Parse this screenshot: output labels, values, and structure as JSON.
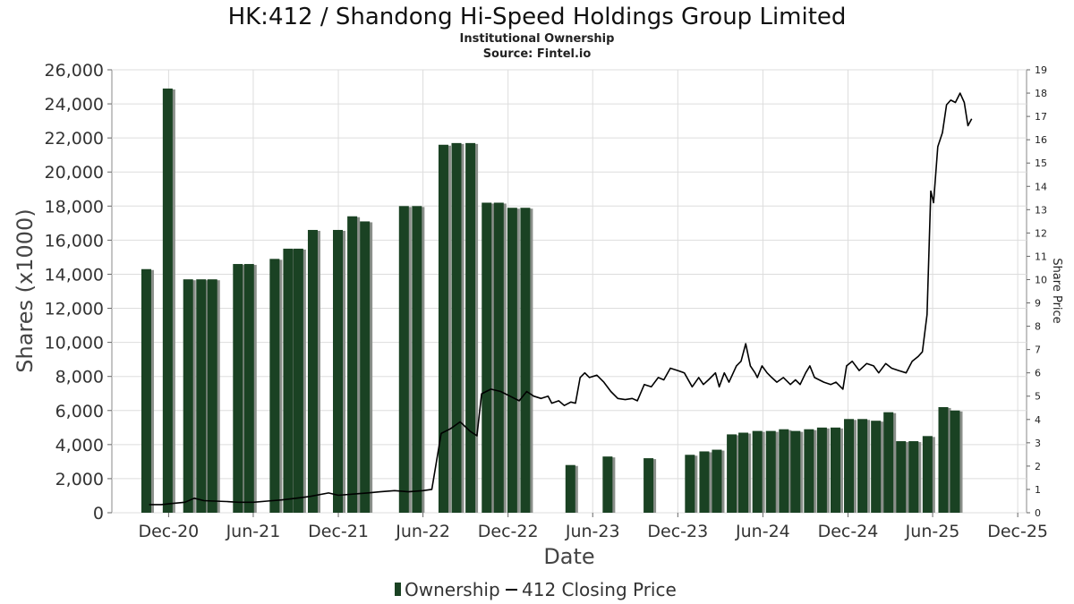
{
  "chart_data": {
    "type": "bar",
    "title": "HK:412 / Shandong Hi-Speed Holdings Group Limited",
    "subtitle_lines": [
      "Institutional Ownership",
      "Source: Fintel.io"
    ],
    "xlabel": "Date",
    "ylabel": "Shares (x1000)",
    "ylabel_right": "Share Price",
    "ylim": [
      0,
      26000
    ],
    "y2lim": [
      0,
      19
    ],
    "xlim": [
      "2020-08-01",
      "2025-12-20"
    ],
    "yticks": [
      0,
      2000,
      4000,
      6000,
      8000,
      10000,
      12000,
      14000,
      16000,
      18000,
      20000,
      22000,
      24000,
      26000
    ],
    "ytick_labels": [
      "0",
      "2,000",
      "4,000",
      "6,000",
      "8,000",
      "10,000",
      "12,000",
      "14,000",
      "16,000",
      "18,000",
      "20,000",
      "22,000",
      "24,000",
      "26,000"
    ],
    "y2ticks": [
      0,
      1,
      2,
      3,
      4,
      5,
      6,
      7,
      8,
      9,
      10,
      11,
      12,
      13,
      14,
      15,
      16,
      17,
      18,
      19
    ],
    "xticks": [
      {
        "date": "2020-12-01",
        "label": "Dec-20"
      },
      {
        "date": "2021-06-01",
        "label": "Jun-21"
      },
      {
        "date": "2021-12-01",
        "label": "Dec-21"
      },
      {
        "date": "2022-06-01",
        "label": "Jun-22"
      },
      {
        "date": "2022-12-01",
        "label": "Dec-22"
      },
      {
        "date": "2023-06-01",
        "label": "Jun-23"
      },
      {
        "date": "2023-12-01",
        "label": "Dec-23"
      },
      {
        "date": "2024-06-01",
        "label": "Jun-24"
      },
      {
        "date": "2024-12-01",
        "label": "Dec-24"
      },
      {
        "date": "2025-06-01",
        "label": "Jun-25"
      },
      {
        "date": "2025-12-01",
        "label": "Dec-25"
      }
    ],
    "grid": true,
    "legend_position": "bottom-center",
    "series": [
      {
        "name": "Ownership",
        "kind": "bar",
        "color": "#1a4223",
        "points": [
          [
            "2020-10-14",
            14300
          ],
          [
            "2020-11-29",
            24900
          ],
          [
            "2021-01-12",
            13700
          ],
          [
            "2021-02-09",
            13700
          ],
          [
            "2021-03-05",
            13700
          ],
          [
            "2021-04-29",
            14600
          ],
          [
            "2021-05-23",
            14600
          ],
          [
            "2021-07-17",
            14900
          ],
          [
            "2021-08-15",
            15500
          ],
          [
            "2021-09-06",
            15500
          ],
          [
            "2021-10-07",
            16600
          ],
          [
            "2021-11-30",
            16600
          ],
          [
            "2021-12-31",
            17400
          ],
          [
            "2022-01-27",
            17100
          ],
          [
            "2022-04-21",
            18000
          ],
          [
            "2022-05-19",
            18000
          ],
          [
            "2022-07-15",
            21600
          ],
          [
            "2022-08-12",
            21700
          ],
          [
            "2022-09-11",
            21700
          ],
          [
            "2022-10-16",
            18200
          ],
          [
            "2022-11-11",
            18200
          ],
          [
            "2022-12-10",
            17900
          ],
          [
            "2023-01-07",
            17900
          ],
          [
            "2023-04-14",
            2800
          ],
          [
            "2023-07-03",
            3300
          ],
          [
            "2023-09-29",
            3200
          ],
          [
            "2023-12-27",
            3400
          ],
          [
            "2024-01-27",
            3600
          ],
          [
            "2024-02-23",
            3700
          ],
          [
            "2024-03-26",
            4600
          ],
          [
            "2024-04-20",
            4700
          ],
          [
            "2024-05-20",
            4800
          ],
          [
            "2024-06-18",
            4800
          ],
          [
            "2024-07-16",
            4900
          ],
          [
            "2024-08-10",
            4800
          ],
          [
            "2024-09-08",
            4900
          ],
          [
            "2024-10-06",
            5000
          ],
          [
            "2024-11-04",
            5000
          ],
          [
            "2024-12-03",
            5500
          ],
          [
            "2025-01-01",
            5500
          ],
          [
            "2025-01-30",
            5400
          ],
          [
            "2025-02-26",
            5900
          ],
          [
            "2025-03-25",
            4200
          ],
          [
            "2025-04-21",
            4200
          ],
          [
            "2025-05-21",
            4500
          ],
          [
            "2025-06-24",
            6200
          ],
          [
            "2025-07-19",
            6000
          ]
        ]
      },
      {
        "name": "412 Closing Price",
        "kind": "line",
        "axis": "right",
        "color": "#000000",
        "points": [
          [
            "2020-10-20",
            0.35
          ],
          [
            "2020-11-15",
            0.35
          ],
          [
            "2020-12-10",
            0.4
          ],
          [
            "2021-01-05",
            0.45
          ],
          [
            "2021-01-25",
            0.62
          ],
          [
            "2021-02-15",
            0.52
          ],
          [
            "2021-03-10",
            0.5
          ],
          [
            "2021-04-05",
            0.48
          ],
          [
            "2021-05-01",
            0.45
          ],
          [
            "2021-06-01",
            0.45
          ],
          [
            "2021-07-01",
            0.5
          ],
          [
            "2021-08-01",
            0.55
          ],
          [
            "2021-09-01",
            0.62
          ],
          [
            "2021-10-01",
            0.7
          ],
          [
            "2021-11-10",
            0.85
          ],
          [
            "2021-12-01",
            0.75
          ],
          [
            "2022-01-01",
            0.8
          ],
          [
            "2022-02-01",
            0.85
          ],
          [
            "2022-03-01",
            0.9
          ],
          [
            "2022-04-01",
            0.95
          ],
          [
            "2022-05-01",
            0.9
          ],
          [
            "2022-06-01",
            0.95
          ],
          [
            "2022-06-20",
            1.0
          ],
          [
            "2022-07-10",
            3.4
          ],
          [
            "2022-07-30",
            3.6
          ],
          [
            "2022-08-20",
            3.9
          ],
          [
            "2022-09-10",
            3.5
          ],
          [
            "2022-09-25",
            3.3
          ],
          [
            "2022-10-05",
            5.1
          ],
          [
            "2022-10-25",
            5.3
          ],
          [
            "2022-11-15",
            5.2
          ],
          [
            "2022-12-05",
            5.0
          ],
          [
            "2022-12-25",
            4.8
          ],
          [
            "2023-01-10",
            5.2
          ],
          [
            "2023-01-25",
            5.0
          ],
          [
            "2023-02-10",
            4.9
          ],
          [
            "2023-02-25",
            5.0
          ],
          [
            "2023-03-05",
            4.7
          ],
          [
            "2023-03-20",
            4.8
          ],
          [
            "2023-04-01",
            4.6
          ],
          [
            "2023-04-15",
            4.75
          ],
          [
            "2023-04-25",
            4.7
          ],
          [
            "2023-05-05",
            5.8
          ],
          [
            "2023-05-15",
            6.0
          ],
          [
            "2023-05-25",
            5.8
          ],
          [
            "2023-06-10",
            5.9
          ],
          [
            "2023-06-25",
            5.6
          ],
          [
            "2023-07-10",
            5.2
          ],
          [
            "2023-07-25",
            4.9
          ],
          [
            "2023-08-10",
            4.85
          ],
          [
            "2023-08-25",
            4.9
          ],
          [
            "2023-09-05",
            4.8
          ],
          [
            "2023-09-20",
            5.5
          ],
          [
            "2023-10-05",
            5.4
          ],
          [
            "2023-10-20",
            5.8
          ],
          [
            "2023-11-01",
            5.7
          ],
          [
            "2023-11-15",
            6.2
          ],
          [
            "2023-12-01",
            6.1
          ],
          [
            "2023-12-15",
            6.0
          ],
          [
            "2024-01-01",
            5.4
          ],
          [
            "2024-01-15",
            5.8
          ],
          [
            "2024-01-25",
            5.5
          ],
          [
            "2024-02-05",
            5.7
          ],
          [
            "2024-02-20",
            6.0
          ],
          [
            "2024-02-28",
            5.4
          ],
          [
            "2024-03-10",
            6.0
          ],
          [
            "2024-03-20",
            5.6
          ],
          [
            "2024-04-05",
            6.3
          ],
          [
            "2024-04-15",
            6.5
          ],
          [
            "2024-04-25",
            7.25
          ],
          [
            "2024-05-05",
            6.3
          ],
          [
            "2024-05-15",
            6.0
          ],
          [
            "2024-05-20",
            5.8
          ],
          [
            "2024-05-30",
            6.3
          ],
          [
            "2024-06-10",
            6.0
          ],
          [
            "2024-06-20",
            5.8
          ],
          [
            "2024-07-01",
            5.6
          ],
          [
            "2024-07-15",
            5.8
          ],
          [
            "2024-07-30",
            5.5
          ],
          [
            "2024-08-10",
            5.7
          ],
          [
            "2024-08-20",
            5.5
          ],
          [
            "2024-09-01",
            6.0
          ],
          [
            "2024-09-10",
            6.3
          ],
          [
            "2024-09-20",
            5.8
          ],
          [
            "2024-10-10",
            5.6
          ],
          [
            "2024-10-25",
            5.5
          ],
          [
            "2024-11-05",
            5.6
          ],
          [
            "2024-11-20",
            5.3
          ],
          [
            "2024-11-28",
            6.3
          ],
          [
            "2024-12-10",
            6.5
          ],
          [
            "2024-12-25",
            6.1
          ],
          [
            "2025-01-10",
            6.4
          ],
          [
            "2025-01-25",
            6.3
          ],
          [
            "2025-02-05",
            6.0
          ],
          [
            "2025-02-20",
            6.4
          ],
          [
            "2025-03-05",
            6.2
          ],
          [
            "2025-03-20",
            6.1
          ],
          [
            "2025-04-05",
            6.0
          ],
          [
            "2025-04-18",
            6.5
          ],
          [
            "2025-05-01",
            6.7
          ],
          [
            "2025-05-10",
            6.9
          ],
          [
            "2025-05-20",
            8.5
          ],
          [
            "2025-05-28",
            13.8
          ],
          [
            "2025-06-03",
            13.3
          ],
          [
            "2025-06-12",
            15.7
          ],
          [
            "2025-06-22",
            16.3
          ],
          [
            "2025-07-01",
            17.5
          ],
          [
            "2025-07-10",
            17.7
          ],
          [
            "2025-07-20",
            17.6
          ],
          [
            "2025-07-30",
            18.0
          ],
          [
            "2025-08-08",
            17.6
          ],
          [
            "2025-08-16",
            16.6
          ],
          [
            "2025-08-24",
            16.9
          ]
        ]
      }
    ]
  }
}
